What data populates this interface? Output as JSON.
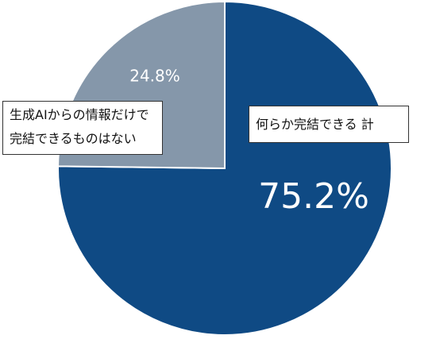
{
  "chart_data": {
    "type": "pie",
    "categories": [
      "何らか完結できる 計",
      "生成AIからの情報だけで完結できるものはない"
    ],
    "values": [
      75.2,
      24.8
    ],
    "value_labels": [
      "75.2%",
      "24.8%"
    ],
    "colors": [
      "#0f4a84",
      "#8597aa"
    ]
  }
}
